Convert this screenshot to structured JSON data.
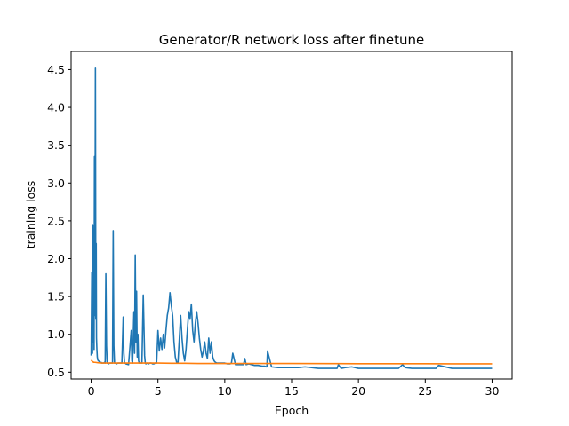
{
  "chart_data": {
    "type": "line",
    "title": "Generator/R network loss after finetune",
    "xlabel": "Epoch",
    "ylabel": "training loss",
    "xlim": [
      -1.5,
      31.5
    ],
    "ylim": [
      0.41,
      4.74
    ],
    "xticks": [
      0,
      5,
      10,
      15,
      20,
      25,
      30
    ],
    "yticks": [
      0.5,
      1.0,
      1.5,
      2.0,
      2.5,
      3.0,
      3.5,
      4.0,
      4.5
    ],
    "xtick_labels": [
      "0",
      "5",
      "10",
      "15",
      "20",
      "25",
      "30"
    ],
    "ytick_labels": [
      "0.5",
      "1.0",
      "1.5",
      "2.0",
      "2.5",
      "3.0",
      "3.5",
      "4.0",
      "4.5"
    ],
    "grid": false,
    "legend": "none",
    "series": [
      {
        "color": "#1f77b4",
        "x": [
          0.0,
          0.05,
          0.1,
          0.13,
          0.16,
          0.2,
          0.22,
          0.25,
          0.28,
          0.32,
          0.35,
          0.38,
          0.4,
          0.43,
          0.46,
          0.5,
          0.55,
          0.6,
          0.65,
          0.7,
          0.75,
          0.8,
          0.85,
          0.9,
          0.95,
          1.0,
          1.05,
          1.1,
          1.15,
          1.2,
          1.25,
          1.3,
          1.4,
          1.5,
          1.6,
          1.65,
          1.7,
          1.75,
          1.8,
          1.9,
          2.0,
          2.1,
          2.2,
          2.3,
          2.4,
          2.45,
          2.5,
          2.55,
          2.6,
          2.8,
          3.0,
          3.05,
          3.1,
          3.2,
          3.25,
          3.3,
          3.35,
          3.4,
          3.45,
          3.5,
          3.55,
          3.6,
          3.7,
          3.8,
          3.9,
          4.0,
          4.05,
          4.1,
          4.2,
          4.3,
          4.4,
          4.5,
          4.6,
          4.7,
          4.8,
          4.9,
          5.0,
          5.1,
          5.2,
          5.3,
          5.4,
          5.5,
          5.6,
          5.7,
          5.8,
          5.9,
          6.0,
          6.1,
          6.2,
          6.3,
          6.4,
          6.5,
          6.7,
          6.8,
          6.9,
          7.0,
          7.1,
          7.2,
          7.3,
          7.4,
          7.5,
          7.6,
          7.7,
          7.8,
          7.9,
          8.0,
          8.1,
          8.2,
          8.3,
          8.4,
          8.5,
          8.6,
          8.7,
          8.8,
          8.9,
          9.0,
          9.1,
          9.2,
          9.3,
          9.4,
          9.5,
          9.6,
          9.7,
          9.8,
          9.9,
          10.0,
          10.2,
          10.4,
          10.5,
          10.6,
          10.8,
          11.0,
          11.2,
          11.3,
          11.4,
          11.5,
          11.6,
          11.8,
          12.0,
          12.2,
          12.5,
          12.8,
          13.0,
          13.1,
          13.15,
          13.2,
          13.5,
          14.0,
          14.5,
          15.0,
          15.5,
          16.0,
          17.0,
          18.0,
          18.4,
          18.5,
          18.7,
          19.0,
          19.5,
          20.0,
          21.0,
          22.0,
          23.0,
          23.3,
          23.5,
          24.0,
          25.0,
          25.8,
          26.0,
          27.0,
          28.0,
          29.0,
          30.0
        ],
        "values": [
          0.72,
          1.82,
          0.75,
          2.45,
          0.9,
          2.1,
          0.8,
          3.35,
          1.25,
          4.52,
          1.2,
          2.2,
          0.95,
          0.8,
          0.7,
          0.66,
          0.65,
          0.64,
          0.63,
          0.63,
          0.63,
          0.62,
          0.62,
          0.62,
          0.62,
          0.63,
          0.62,
          1.8,
          0.85,
          0.62,
          0.62,
          0.61,
          0.62,
          0.62,
          0.62,
          2.37,
          0.85,
          0.62,
          0.62,
          0.61,
          0.62,
          0.62,
          0.62,
          0.62,
          1.23,
          0.75,
          0.62,
          0.62,
          0.61,
          0.6,
          1.05,
          0.65,
          0.62,
          1.3,
          0.75,
          2.05,
          0.9,
          1.57,
          0.7,
          1.0,
          0.65,
          0.62,
          0.62,
          0.62,
          1.52,
          0.72,
          0.62,
          0.61,
          0.62,
          0.61,
          0.62,
          0.62,
          0.61,
          0.61,
          0.62,
          0.62,
          1.05,
          0.78,
          0.95,
          0.8,
          1.0,
          0.82,
          1.05,
          1.25,
          1.35,
          1.55,
          1.38,
          1.25,
          0.9,
          0.7,
          0.63,
          0.63,
          1.25,
          0.95,
          0.75,
          0.65,
          0.8,
          1.05,
          1.3,
          1.2,
          1.4,
          1.05,
          0.9,
          1.15,
          1.3,
          1.15,
          0.95,
          0.8,
          0.7,
          0.78,
          0.9,
          0.75,
          0.68,
          0.95,
          0.75,
          0.9,
          0.7,
          0.65,
          0.63,
          0.62,
          0.62,
          0.62,
          0.62,
          0.62,
          0.62,
          0.62,
          0.61,
          0.61,
          0.62,
          0.75,
          0.6,
          0.6,
          0.6,
          0.6,
          0.6,
          0.68,
          0.6,
          0.61,
          0.6,
          0.59,
          0.59,
          0.58,
          0.58,
          0.57,
          0.57,
          0.78,
          0.57,
          0.56,
          0.56,
          0.56,
          0.56,
          0.57,
          0.55,
          0.55,
          0.55,
          0.6,
          0.55,
          0.56,
          0.57,
          0.55,
          0.55,
          0.55,
          0.55,
          0.6,
          0.56,
          0.55,
          0.55,
          0.55,
          0.59,
          0.55,
          0.55,
          0.55,
          0.55
        ]
      },
      {
        "color": "#ff7f0e",
        "x": [
          0.0,
          0.1,
          0.2,
          0.3,
          0.5,
          0.8,
          1.0,
          2.0,
          3.0,
          4.0,
          5.0,
          6.0,
          7.0,
          8.0,
          10.0,
          12.0,
          15.0,
          18.0,
          20.0,
          22.0,
          25.0,
          28.0,
          30.0
        ],
        "values": [
          0.66,
          0.64,
          0.63,
          0.63,
          0.625,
          0.62,
          0.62,
          0.62,
          0.62,
          0.62,
          0.62,
          0.618,
          0.618,
          0.615,
          0.615,
          0.615,
          0.615,
          0.613,
          0.612,
          0.612,
          0.612,
          0.61,
          0.61
        ]
      }
    ]
  }
}
